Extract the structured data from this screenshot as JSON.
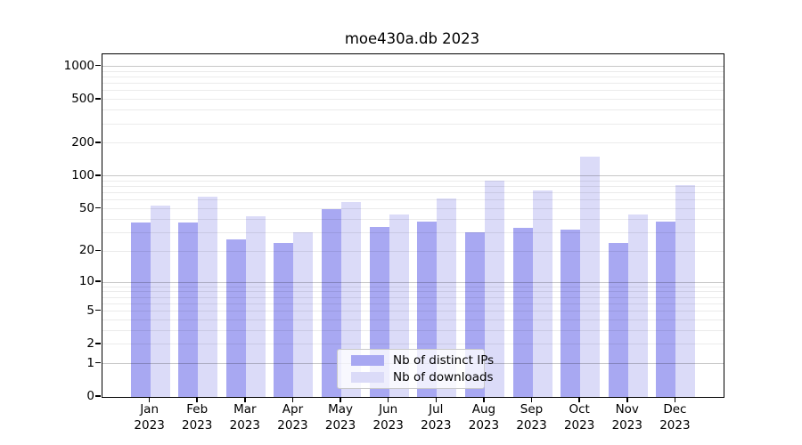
{
  "chart_data": {
    "type": "bar",
    "title": "moe430a.db 2023",
    "xlabel": "",
    "ylabel": "",
    "y_scale": "symlog: position proportional to log10(1+y)",
    "ylim": [
      0,
      1300
    ],
    "y_tick_labels": [
      "1000",
      "500",
      "200",
      "100",
      "50",
      "20",
      "10",
      "5",
      "2",
      "1",
      "0"
    ],
    "y_tick_values": [
      1000,
      500,
      200,
      100,
      50,
      20,
      10,
      5,
      2,
      1,
      0
    ],
    "categories": [
      "Jan",
      "Feb",
      "Mar",
      "Apr",
      "May",
      "Jun",
      "Jul",
      "Aug",
      "Sep",
      "Oct",
      "Nov",
      "Dec"
    ],
    "category_year": "2023",
    "series": [
      {
        "name": "Nb of distinct IPs",
        "color": "#a8a8f2",
        "values": [
          37,
          37,
          26,
          24,
          50,
          34,
          38,
          30,
          33,
          32,
          24,
          38
        ]
      },
      {
        "name": "Nb of downloads",
        "color": "#dbdbf8",
        "values": [
          54,
          65,
          43,
          30,
          58,
          44,
          62,
          91,
          74,
          150,
          44,
          82
        ]
      }
    ],
    "grid": {
      "major_at": [
        1,
        10,
        100,
        1000
      ],
      "minor": "2-9 per decade, drawn over bars"
    },
    "legend": {
      "position": "bottom-center",
      "entries": [
        "Nb of distinct IPs",
        "Nb of downloads"
      ]
    }
  },
  "colors": {
    "background": "#ffffff",
    "spine": "#000000",
    "grid_major": "rgba(0,0,0,0.22)",
    "grid_minor": "rgba(0,0,0,0.08)"
  }
}
